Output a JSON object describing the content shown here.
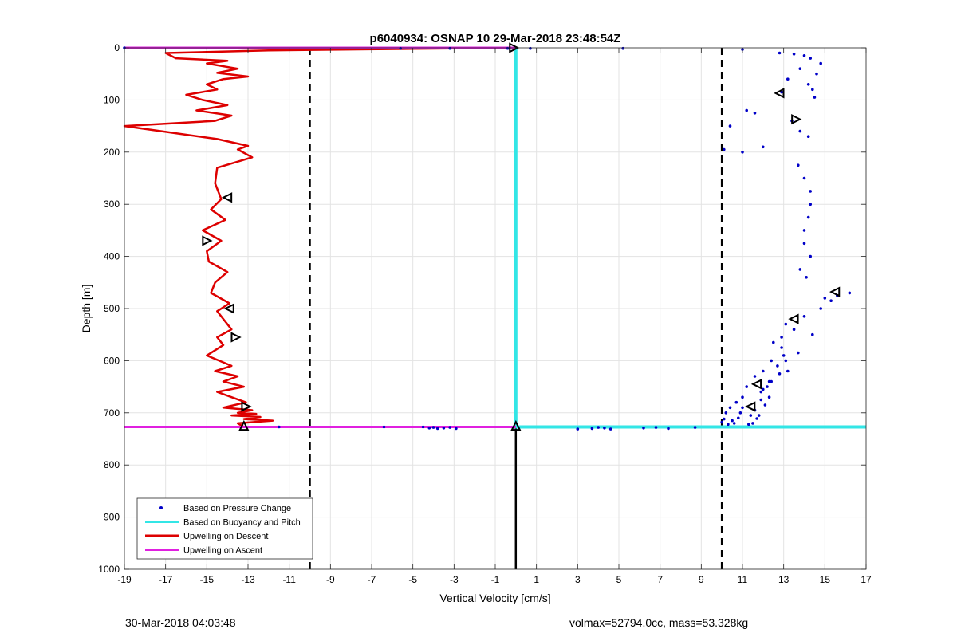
{
  "chart_data": {
    "type": "scatter",
    "title": "p6040934: OSNAP 10 29-Mar-2018 23:48:54Z",
    "xlabel": "Vertical Velocity [cm/s]",
    "ylabel": "Depth [m]",
    "xlim": [
      -19,
      17
    ],
    "ylim": [
      0,
      1000
    ],
    "y_reversed": true,
    "x_ticks": [
      -19,
      -17,
      -15,
      -13,
      -11,
      -9,
      -7,
      -5,
      -3,
      -1,
      1,
      3,
      5,
      7,
      9,
      11,
      13,
      15,
      17
    ],
    "y_ticks": [
      0,
      100,
      200,
      300,
      400,
      500,
      600,
      700,
      800,
      900,
      1000
    ],
    "grid": true,
    "legend_position": "bottom-left",
    "colors": {
      "pressure": "#0000c8",
      "buoyancy": "#33e6e6",
      "descent": "#dd0000",
      "ascent": "#e020e0",
      "limits": "#000000"
    },
    "legend": [
      {
        "label": "Based on Pressure Change",
        "style": "dot",
        "color": "#0000c8"
      },
      {
        "label": "Based on Buoyancy and Pitch",
        "style": "line",
        "color": "#33e6e6"
      },
      {
        "label": "Upwelling on Descent",
        "style": "line",
        "color": "#dd0000"
      },
      {
        "label": "Upwelling on Ascent",
        "style": "line",
        "color": "#e020e0"
      }
    ],
    "limit_lines_x": [
      -10,
      10
    ],
    "buoyancy_pitch": {
      "x": [
        0,
        0,
        17
      ],
      "depth": [
        0,
        727,
        727
      ]
    },
    "ascent_lines": [
      {
        "x": [
          -19,
          0
        ],
        "depth": [
          0,
          0
        ]
      },
      {
        "x": [
          -19,
          0
        ],
        "depth": [
          727,
          727
        ]
      }
    ],
    "below_bottom_line": {
      "x": [
        0,
        0
      ],
      "depth": [
        727,
        1000
      ]
    },
    "descent_profile": {
      "x": [
        -0.1,
        -5,
        -12,
        -17,
        -16.5,
        -14,
        -15,
        -13.5,
        -14.5,
        -13,
        -14.2,
        -15,
        -14.5,
        -16,
        -15.2,
        -14,
        -15.5,
        -13.8,
        -14.6,
        -19,
        -17.2,
        -14.5,
        -13,
        -13.5,
        -12.8,
        -14.5,
        -14.6,
        -14.3,
        -14.8,
        -14.1,
        -15.2,
        -14.3,
        -15,
        -14.9,
        -14,
        -14.6,
        -14.8,
        -13.9,
        -14.5,
        -14.2,
        -13.8,
        -14.5,
        -14.2,
        -15,
        -13.8,
        -14.6,
        -13.5,
        -14.2,
        -13.2,
        -14.5,
        -13.8,
        -13.1,
        -14.2,
        -12.8,
        -13.5,
        -12.6,
        -13.8,
        -12.4,
        -13.2,
        -11.8,
        -13.5,
        -13.2
      ],
      "depth": [
        0,
        2,
        5,
        10,
        20,
        25,
        30,
        40,
        48,
        55,
        60,
        70,
        80,
        90,
        100,
        110,
        120,
        130,
        140,
        150,
        160,
        175,
        188,
        195,
        210,
        230,
        260,
        290,
        310,
        330,
        350,
        370,
        390,
        410,
        430,
        450,
        470,
        490,
        505,
        520,
        540,
        555,
        570,
        590,
        610,
        620,
        630,
        640,
        650,
        660,
        670,
        680,
        690,
        695,
        700,
        702,
        705,
        708,
        712,
        715,
        720,
        727
      ]
    },
    "pressure_scatter": {
      "x": [
        -19,
        -5.6,
        -3.2,
        -0.4,
        0.7,
        5.2,
        -6.4,
        -4.5,
        -4.2,
        -4.0,
        -3.8,
        -3.5,
        -3.2,
        -2.9,
        3.0,
        3.7,
        4.0,
        4.3,
        4.6,
        6.2,
        6.8,
        7.4,
        8.7,
        -11.5,
        11.0,
        12.8,
        13.5,
        14.0,
        14.3,
        14.8,
        13.8,
        14.6,
        13.2,
        14.2,
        14.4,
        12.9,
        14.5,
        11.2,
        11.6,
        10.4,
        10.1,
        11.0,
        12.0,
        13.8,
        14.2,
        13.4,
        13.7,
        14.0,
        14.3,
        14.3,
        14.2,
        14.0,
        14.0,
        14.3,
        13.8,
        14.1,
        15.0,
        15.6,
        16.2,
        15.3,
        14.8,
        14.0,
        13.1,
        13.5,
        12.9,
        14.4,
        12.5,
        12.9,
        13.0,
        12.4,
        12.7,
        12.0,
        11.6,
        13.2,
        12.3,
        11.2,
        11.9,
        11.0,
        10.7,
        12.0,
        10.4,
        10.2,
        11.6,
        12.3,
        12.1,
        11.4,
        10.8,
        10.5,
        11.0,
        11.9,
        11.5,
        12.4,
        13.1,
        13.7,
        12.8,
        11.8,
        12.2,
        10.9,
        10.1,
        10.6,
        11.3,
        10.0,
        10.3,
        11.7
      ],
      "depth": [
        0,
        1,
        1,
        1,
        1,
        1,
        727,
        727,
        729,
        728,
        730,
        729,
        728,
        730,
        731,
        730,
        728,
        729,
        731,
        729,
        728,
        730,
        728,
        727,
        3,
        10,
        12,
        15,
        20,
        30,
        40,
        50,
        60,
        70,
        80,
        85,
        95,
        120,
        125,
        150,
        195,
        200,
        190,
        160,
        170,
        140,
        225,
        250,
        275,
        300,
        325,
        350,
        375,
        400,
        425,
        440,
        480,
        475,
        470,
        485,
        500,
        515,
        530,
        540,
        555,
        550,
        565,
        575,
        590,
        600,
        610,
        620,
        630,
        620,
        640,
        650,
        660,
        670,
        680,
        655,
        690,
        700,
        695,
        670,
        685,
        705,
        710,
        715,
        690,
        675,
        720,
        640,
        600,
        585,
        625,
        705,
        650,
        700,
        712,
        720,
        722,
        718,
        722,
        711
      ]
    },
    "markers": [
      {
        "x": -0.1,
        "depth": 0,
        "dir": "right"
      },
      {
        "x": 12.8,
        "depth": 87,
        "dir": "left"
      },
      {
        "x": 13.6,
        "depth": 137,
        "dir": "right"
      },
      {
        "x": -14.0,
        "depth": 287,
        "dir": "left"
      },
      {
        "x": -15.0,
        "depth": 370,
        "dir": "right"
      },
      {
        "x": 15.5,
        "depth": 468,
        "dir": "left"
      },
      {
        "x": -13.9,
        "depth": 500,
        "dir": "left"
      },
      {
        "x": 13.5,
        "depth": 520,
        "dir": "left"
      },
      {
        "x": -13.6,
        "depth": 555,
        "dir": "right"
      },
      {
        "x": 11.7,
        "depth": 645,
        "dir": "left"
      },
      {
        "x": -13.1,
        "depth": 688,
        "dir": "right"
      },
      {
        "x": 11.4,
        "depth": 688,
        "dir": "left"
      },
      {
        "x": -13.2,
        "depth": 725,
        "dir": "up"
      },
      {
        "x": 0.0,
        "depth": 725,
        "dir": "up"
      }
    ]
  },
  "footer": {
    "timestamp": "30-Mar-2018 04:03:48",
    "vehicle_info": "volmax=52794.0cc, mass=53.328kg"
  }
}
